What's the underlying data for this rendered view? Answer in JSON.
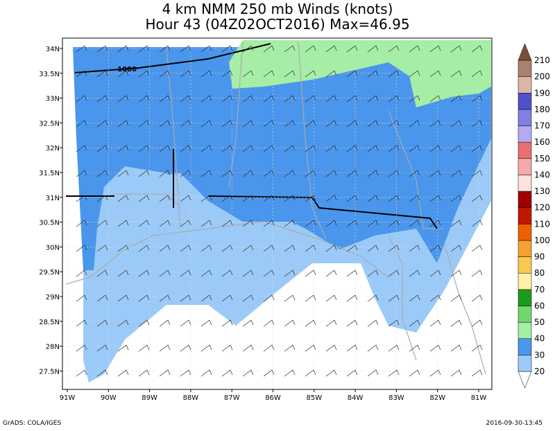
{
  "title": {
    "line1": "4 km NMM 250 mb Winds (knots)",
    "line2": "Hour 43 (04Z02OCT2016) Max=46.95"
  },
  "map": {
    "lat_labels": [
      "34N",
      "33.5N",
      "33N",
      "32.5N",
      "32N",
      "31.5N",
      "31N",
      "30.5N",
      "30N",
      "29.5N",
      "29N",
      "28.5N",
      "28N",
      "27.5N"
    ],
    "lon_labels": [
      "91W",
      "90W",
      "89W",
      "88W",
      "87W",
      "86W",
      "85W",
      "84W",
      "83W",
      "82W",
      "81W"
    ],
    "contour_label": "1080"
  },
  "colorbar": {
    "levels": [
      20,
      30,
      40,
      50,
      60,
      70,
      80,
      90,
      100,
      110,
      120,
      130,
      140,
      150,
      160,
      170,
      180,
      190,
      200,
      210
    ],
    "colors": [
      "#ffffff",
      "#9ccaf8",
      "#4a96ec",
      "#a6eda6",
      "#6ed86e",
      "#1e9a1e",
      "#fff0aa",
      "#f8c850",
      "#f5a030",
      "#f06000",
      "#c01800",
      "#a00000",
      "#fde0e0",
      "#f5aaaa",
      "#e87070",
      "#b4aaf0",
      "#8080e0",
      "#5050cc",
      "#dcb4aa",
      "#aa8070",
      "#78503c"
    ]
  },
  "footer": {
    "left": "GrADS: COLA/IGES",
    "right": "2016-09-30-13:45"
  }
}
